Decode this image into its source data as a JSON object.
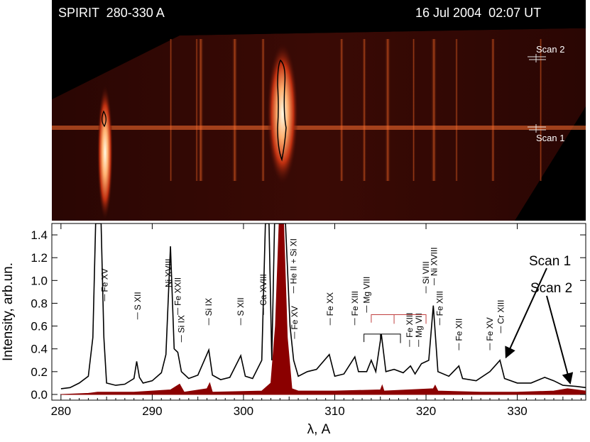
{
  "image": {
    "instrument_label": "SPIRIT  280-330 A",
    "date_label": "16 Jul 2004  02:07 UT",
    "scan_labels": [
      "Scan 2",
      "Scan 1"
    ]
  },
  "chart_data": {
    "type": "line",
    "xlabel": "λ, A",
    "ylabel": "Intensity, arb.un.",
    "xlim": [
      279,
      337.5
    ],
    "ylim": [
      -0.05,
      1.5
    ],
    "xticks": [
      280,
      290,
      300,
      310,
      320,
      330
    ],
    "yticks": [
      "0.0",
      "0.2",
      "0.4",
      "0.6",
      "0.8",
      "1.0",
      "1.2",
      "1.4"
    ],
    "series": [
      {
        "name": "Scan 1",
        "color": "#000000",
        "points": [
          [
            280.0,
            0.05
          ],
          [
            281.0,
            0.06
          ],
          [
            282.0,
            0.1
          ],
          [
            283.0,
            0.16
          ],
          [
            283.5,
            0.5
          ],
          [
            283.8,
            1.5
          ],
          [
            284.4,
            1.5
          ],
          [
            284.7,
            0.5
          ],
          [
            285.0,
            0.1
          ],
          [
            286.0,
            0.08
          ],
          [
            287.0,
            0.09
          ],
          [
            288.0,
            0.14
          ],
          [
            288.3,
            0.29
          ],
          [
            288.6,
            0.15
          ],
          [
            289.0,
            0.1
          ],
          [
            290.0,
            0.12
          ],
          [
            291.0,
            0.19
          ],
          [
            291.5,
            0.35
          ],
          [
            292.0,
            1.3
          ],
          [
            292.4,
            0.4
          ],
          [
            292.8,
            0.37
          ],
          [
            293.2,
            0.2
          ],
          [
            294.0,
            0.14
          ],
          [
            295.0,
            0.17
          ],
          [
            296.2,
            0.39
          ],
          [
            296.6,
            0.17
          ],
          [
            297.5,
            0.13
          ],
          [
            298.5,
            0.15
          ],
          [
            299.7,
            0.34
          ],
          [
            300.2,
            0.16
          ],
          [
            301.0,
            0.14
          ],
          [
            302.0,
            0.3
          ],
          [
            302.4,
            1.5
          ],
          [
            302.8,
            1.5
          ],
          [
            303.1,
            0.3
          ],
          [
            303.4,
            1.5
          ],
          [
            304.6,
            1.5
          ],
          [
            305.1,
            0.6
          ],
          [
            305.5,
            0.3
          ],
          [
            306.0,
            0.16
          ],
          [
            307.0,
            0.2
          ],
          [
            308.0,
            0.22
          ],
          [
            309.4,
            0.35
          ],
          [
            310.0,
            0.16
          ],
          [
            311.0,
            0.18
          ],
          [
            312.2,
            0.33
          ],
          [
            312.6,
            0.2
          ],
          [
            313.5,
            0.2
          ],
          [
            314.0,
            0.3
          ],
          [
            314.5,
            0.2
          ],
          [
            315.1,
            0.53
          ],
          [
            315.6,
            0.2
          ],
          [
            316.5,
            0.22
          ],
          [
            317.5,
            0.19
          ],
          [
            318.3,
            0.25
          ],
          [
            318.8,
            0.18
          ],
          [
            319.5,
            0.27
          ],
          [
            320.3,
            0.3
          ],
          [
            320.8,
            0.78
          ],
          [
            321.3,
            0.2
          ],
          [
            322.5,
            0.16
          ],
          [
            323.6,
            0.25
          ],
          [
            324.0,
            0.14
          ],
          [
            325.5,
            0.12
          ],
          [
            327.0,
            0.2
          ],
          [
            328.1,
            0.3
          ],
          [
            328.6,
            0.14
          ],
          [
            330.0,
            0.1
          ],
          [
            331.5,
            0.1
          ],
          [
            333.0,
            0.15
          ],
          [
            334.0,
            0.12
          ],
          [
            335.0,
            0.08
          ],
          [
            336.5,
            0.07
          ],
          [
            337.5,
            0.06
          ]
        ]
      },
      {
        "name": "Scan 2",
        "color": "#8b0000",
        "points": [
          [
            280.0,
            0.0
          ],
          [
            283.0,
            0.01
          ],
          [
            284.0,
            0.02
          ],
          [
            288.0,
            0.02
          ],
          [
            292.0,
            0.04
          ],
          [
            293.0,
            0.09
          ],
          [
            293.5,
            0.02
          ],
          [
            296.0,
            0.05
          ],
          [
            296.3,
            0.1
          ],
          [
            296.6,
            0.02
          ],
          [
            302.0,
            0.03
          ],
          [
            303.0,
            0.1
          ],
          [
            303.5,
            0.6
          ],
          [
            303.9,
            1.5
          ],
          [
            304.4,
            1.5
          ],
          [
            304.8,
            0.5
          ],
          [
            305.3,
            0.05
          ],
          [
            306.0,
            0.03
          ],
          [
            310.0,
            0.03
          ],
          [
            315.0,
            0.04
          ],
          [
            315.2,
            0.08
          ],
          [
            315.4,
            0.03
          ],
          [
            320.8,
            0.05
          ],
          [
            321.0,
            0.08
          ],
          [
            321.3,
            0.03
          ],
          [
            326.0,
            0.02
          ],
          [
            330.0,
            0.02
          ],
          [
            334.0,
            0.03
          ],
          [
            335.5,
            0.05
          ],
          [
            337.5,
            0.03
          ]
        ]
      }
    ],
    "line_labels": [
      {
        "text": "Fe XV",
        "x": 284.8,
        "y": 0.88
      },
      {
        "text": "S XII",
        "x": 288.4,
        "y": 0.72
      },
      {
        "text": "Ni XVIII",
        "x": 291.8,
        "y": 0.92
      },
      {
        "text": "Fe XXII",
        "x": 292.8,
        "y": 0.76
      },
      {
        "text": "Si IX",
        "x": 293.2,
        "y": 0.52
      },
      {
        "text": "Si IX",
        "x": 296.2,
        "y": 0.67
      },
      {
        "text": "S XII",
        "x": 299.7,
        "y": 0.67
      },
      {
        "text": "Ca XVIII",
        "x": 302.2,
        "y": 0.76
      },
      {
        "text": "He II + Si XI",
        "x": 305.5,
        "y": 0.95
      },
      {
        "text": "Fe XV",
        "x": 305.6,
        "y": 0.55
      },
      {
        "text": "Fe XX",
        "x": 309.5,
        "y": 0.67
      },
      {
        "text": "Fe XIII",
        "x": 312.2,
        "y": 0.67
      },
      {
        "text": "Mg VIII",
        "x": 313.5,
        "y": 0.78
      },
      {
        "text": "Fe XIII",
        "x": 318.2,
        "y": 0.48
      },
      {
        "text": "Mg VII",
        "x": 319.2,
        "y": 0.48
      },
      {
        "text": "Si VIII",
        "x": 320.0,
        "y": 0.95
      },
      {
        "text": "Ni XVIII",
        "x": 320.9,
        "y": 1.02
      },
      {
        "text": "Fe XIII",
        "x": 321.5,
        "y": 0.67
      },
      {
        "text": "Fe XII",
        "x": 323.6,
        "y": 0.45
      },
      {
        "text": "Fe XV",
        "x": 327.0,
        "y": 0.45
      },
      {
        "text": "Cr XIII",
        "x": 328.2,
        "y": 0.6
      }
    ],
    "annotations": [
      {
        "text": "Scan 1",
        "target_x": 328.6,
        "target_y": 0.3,
        "position": "top-right"
      },
      {
        "text": "Scan 2",
        "target_x": 335.8,
        "target_y": 0.06,
        "position": "right"
      }
    ]
  }
}
